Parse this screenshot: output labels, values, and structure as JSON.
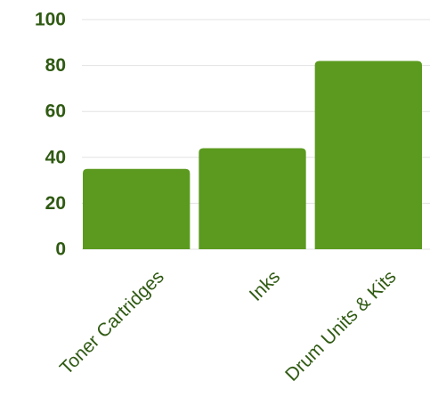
{
  "chart_data": {
    "type": "bar",
    "categories": [
      "Toner Cartridges",
      "Inks",
      "Drum Units & Kits"
    ],
    "values": [
      35,
      44,
      82
    ],
    "ylim": [
      0,
      100
    ],
    "yticks": [
      0,
      20,
      40,
      60,
      80,
      100
    ],
    "grid": true,
    "legend": "none",
    "title": "",
    "xlabel": "",
    "ylabel": ""
  },
  "colors": {
    "bar": "#5b9a1f",
    "text": "#2f5a12",
    "grid": "#e3e3e3"
  }
}
